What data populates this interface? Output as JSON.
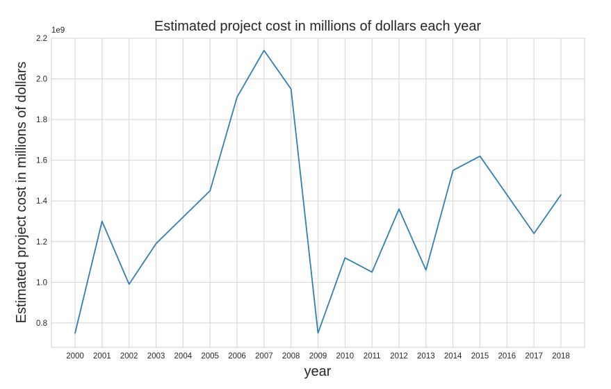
{
  "chart_data": {
    "type": "line",
    "title": "Estimated project cost in millions of dollars each year",
    "xlabel": "year",
    "ylabel": "Estimated project cost in millions of dollars",
    "y_offset_label": "1e9",
    "x": [
      "2000",
      "2001",
      "2002",
      "2003",
      "2004",
      "2005",
      "2006",
      "2007",
      "2008",
      "2009",
      "2010",
      "2011",
      "2012",
      "2013",
      "2014",
      "2015",
      "2016",
      "2017",
      "2018"
    ],
    "series": [
      {
        "values": [
          0.75,
          1.3,
          0.99,
          1.19,
          1.32,
          1.45,
          1.91,
          2.14,
          1.95,
          0.75,
          1.12,
          1.05,
          1.36,
          1.06,
          1.55,
          1.62,
          1.43,
          1.24,
          1.43
        ]
      }
    ],
    "yticks": [
      "0.8",
      "1.0",
      "1.2",
      "1.4",
      "1.6",
      "1.8",
      "2.0",
      "2.2"
    ],
    "ytick_values": [
      0.8,
      1.0,
      1.2,
      1.4,
      1.6,
      1.8,
      2.0,
      2.2
    ],
    "ylim": [
      0.68,
      2.2
    ],
    "grid": true,
    "line_color": "#2f7fb5"
  }
}
